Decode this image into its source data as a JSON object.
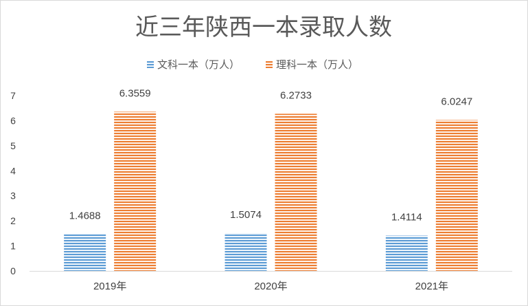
{
  "chart_data": {
    "type": "bar",
    "title": "近三年陕西一本录取人数",
    "categories": [
      "2019年",
      "2020年",
      "2021年"
    ],
    "series": [
      {
        "name": "文科一本（万人）",
        "values": [
          1.4688,
          1.5074,
          1.4114
        ],
        "color": "#5b9bd5",
        "pattern": "horizontal-lines"
      },
      {
        "name": "理科一本（万人）",
        "values": [
          6.3559,
          6.2733,
          6.0247
        ],
        "color": "#ed7d31",
        "pattern": "horizontal-lines"
      }
    ],
    "ylim": [
      0,
      7
    ],
    "yticks": [
      "0",
      "1",
      "2",
      "3",
      "4",
      "5",
      "6",
      "7"
    ],
    "data_labels": [
      [
        "1.4688",
        "1.5074",
        "1.4114"
      ],
      [
        "6.3559",
        "6.2733",
        "6.0247"
      ]
    ],
    "legend_position": "top",
    "grid": false
  }
}
